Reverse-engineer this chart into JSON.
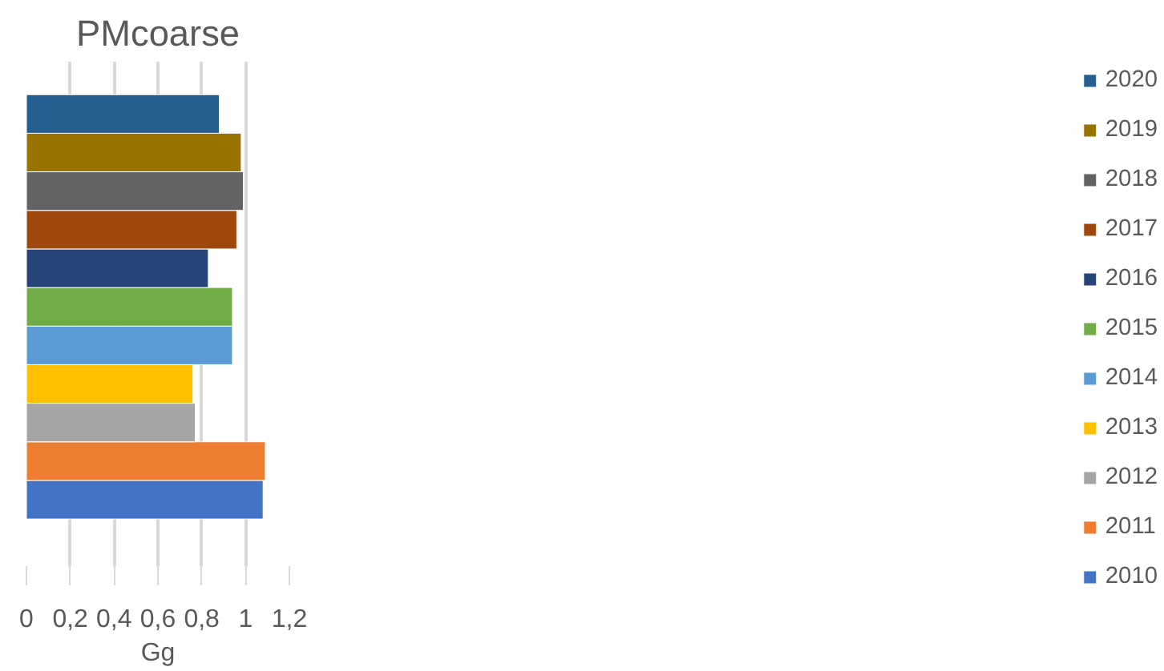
{
  "chart_data": {
    "type": "bar",
    "orientation": "horizontal",
    "title": "PMcoarse",
    "xlabel": "Gg",
    "categories": [
      null
    ],
    "series": [
      {
        "name": "2010",
        "color": "#4472c4",
        "values": [
          1.08
        ]
      },
      {
        "name": "2011",
        "color": "#ed7d31",
        "values": [
          1.09
        ]
      },
      {
        "name": "2012",
        "color": "#a5a5a5",
        "values": [
          0.77
        ]
      },
      {
        "name": "2013",
        "color": "#ffc000",
        "values": [
          0.76
        ]
      },
      {
        "name": "2014",
        "color": "#5b9bd5",
        "values": [
          0.94
        ]
      },
      {
        "name": "2015",
        "color": "#70ad47",
        "values": [
          0.94
        ]
      },
      {
        "name": "2016",
        "color": "#264478",
        "values": [
          0.83
        ]
      },
      {
        "name": "2017",
        "color": "#9e480e",
        "values": [
          0.96
        ]
      },
      {
        "name": "2018",
        "color": "#636363",
        "values": [
          0.99
        ]
      },
      {
        "name": "2019",
        "color": "#997300",
        "values": [
          0.98
        ]
      },
      {
        "name": "2020",
        "color": "#255e91",
        "values": [
          0.88
        ]
      }
    ],
    "xlim": [
      0,
      1.2
    ],
    "xticks": [
      {
        "value": 0,
        "label": "0"
      },
      {
        "value": 0.2,
        "label": "0,2"
      },
      {
        "value": 0.4,
        "label": "0,4"
      },
      {
        "value": 0.6,
        "label": "0,6"
      },
      {
        "value": 0.8,
        "label": "0,8"
      },
      {
        "value": 1,
        "label": "1"
      },
      {
        "value": 1.2,
        "label": "1,2"
      }
    ],
    "grid": "x",
    "legend": "right"
  }
}
